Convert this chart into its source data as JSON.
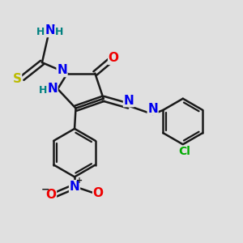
{
  "bg_color": "#e0e0e0",
  "bond_color": "#1a1a1a",
  "bond_width": 1.8,
  "colors": {
    "N": "#0000ee",
    "O": "#ee0000",
    "S": "#bbbb00",
    "Cl": "#00aa00",
    "C": "#1a1a1a",
    "H": "#008080"
  },
  "font_size_large": 11,
  "font_size_small": 9
}
